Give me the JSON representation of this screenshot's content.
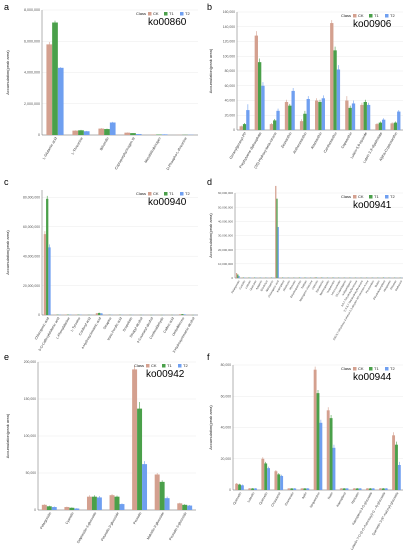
{
  "figure": {
    "legend_title": "Class",
    "groups": [
      "CK",
      "T1",
      "T2"
    ],
    "group_colors": [
      "#d4a08f",
      "#4aa04a",
      "#6f9ff0"
    ],
    "y_axis_label": "Accumulation(peak area)"
  },
  "chart_data": [
    {
      "type": "bar",
      "panel_label": "a",
      "title": "ko00860",
      "ylabel": "Accumulation(peak area)",
      "xlabel": "",
      "ylim": [
        0,
        8000000
      ],
      "yticks": [
        0,
        2000000,
        4000000,
        6000000,
        8000000
      ],
      "ytick_labels": [
        "0",
        "2,000,000",
        "4,000,000",
        "6,000,000",
        "8,000,000"
      ],
      "categories": [
        "L-Glutamic acid",
        "L-Threonine",
        "Biliverdin",
        "Coproporphyrinogen III",
        "Mesobilirubinogen",
        "D-Phospho-L-threonine"
      ],
      "series": [
        {
          "name": "CK",
          "values": [
            5800000,
            280000,
            410000,
            150000,
            20000,
            10000
          ]
        },
        {
          "name": "T1",
          "values": [
            7200000,
            300000,
            380000,
            120000,
            30000,
            12000
          ]
        },
        {
          "name": "T2",
          "values": [
            4300000,
            240000,
            800000,
            60000,
            40000,
            15000
          ]
        }
      ],
      "errors": [
        [
          150000,
          20000,
          30000,
          15000,
          5000,
          3000
        ],
        [
          120000,
          25000,
          30000,
          12000,
          5000,
          3000
        ],
        [
          40000,
          20000,
          40000,
          8000,
          5000,
          3000
        ]
      ],
      "legend_position": "top-right"
    },
    {
      "type": "bar",
      "panel_label": "b",
      "title": "ko00906",
      "ylabel": "Accumulation(peak area)",
      "xlabel": "",
      "ylim": [
        0,
        160000
      ],
      "yticks": [
        0,
        20000,
        40000,
        60000,
        80000,
        100000,
        120000,
        140000,
        160000
      ],
      "ytick_labels": [
        "0",
        "20,000",
        "40,000",
        "60,000",
        "80,000",
        "100,000",
        "120,000",
        "140,000",
        "160,000"
      ],
      "categories": [
        "Geranylgeranyl-PP",
        "Prephytoene diphosphate",
        "(3S)-Hydroxy-beta-ionone",
        "Zeaxanthin",
        "Antheraxanthin",
        "Astaxanthin",
        "Canthaxanthin",
        "Capsanthin",
        "Lutein-5,6-epoxide",
        "Lutein 3,3'-dipalmitate",
        "Alpha-Cryptoxanthin"
      ],
      "series": [
        {
          "name": "CK",
          "values": [
            5000,
            128000,
            8000,
            38000,
            12000,
            40000,
            145000,
            40000,
            34000,
            8000,
            9000
          ]
        },
        {
          "name": "T1",
          "values": [
            8000,
            92000,
            13000,
            33000,
            22000,
            38000,
            108000,
            30000,
            38000,
            10000,
            10000
          ]
        },
        {
          "name": "T2",
          "values": [
            27000,
            60000,
            26000,
            53000,
            42000,
            43000,
            82000,
            36000,
            34000,
            14000,
            25000
          ]
        }
      ],
      "errors": [
        [
          1000,
          6000,
          1500,
          3000,
          2500,
          3000,
          4000,
          6000,
          3000,
          1500,
          1500
        ],
        [
          1500,
          5000,
          2000,
          2500,
          4000,
          3000,
          5000,
          3000,
          3000,
          1500,
          1500
        ],
        [
          8000,
          5000,
          3000,
          4000,
          4000,
          4000,
          6000,
          4000,
          3000,
          2000,
          2000
        ]
      ],
      "legend_position": "top-right"
    },
    {
      "type": "bar",
      "panel_label": "c",
      "title": "ko00940",
      "ylabel": "Accumulation(peak area)",
      "xlabel": "",
      "ylim": [
        0,
        85000000
      ],
      "yticks": [
        0,
        20000000,
        40000000,
        60000000,
        80000000
      ],
      "ytick_labels": [
        "0",
        "20,000,000",
        "40,000,000",
        "60,000,000",
        "80,000,000"
      ],
      "categories": [
        "Chlorogenic acid",
        "5-O-Caffeoylshikimic acid",
        "L-Phenylalanine",
        "L-Tyrosine",
        "Coniferyl acid",
        "4-Hydroxycinnamic acid",
        "Sinapine",
        "trans-Ferulic acid",
        "Scopoletin",
        "Sinapyl alcohol",
        "4-Coumaryl alcohol",
        "Coniferaldehyde",
        "Caffeic acid",
        "Umbelliferone",
        "3-Hydroxycinnamic alcohol"
      ],
      "series": [
        {
          "name": "CK",
          "values": [
            55000000,
            200000,
            300000,
            200000,
            100000,
            1200000,
            150000,
            150000,
            100000,
            80000,
            50000,
            60000,
            80000,
            500000,
            60000
          ]
        },
        {
          "name": "T1",
          "values": [
            79000000,
            200000,
            250000,
            200000,
            100000,
            1400000,
            150000,
            150000,
            100000,
            80000,
            50000,
            60000,
            80000,
            600000,
            60000
          ]
        },
        {
          "name": "T2",
          "values": [
            46000000,
            200000,
            250000,
            200000,
            100000,
            1100000,
            150000,
            150000,
            100000,
            80000,
            50000,
            60000,
            80000,
            400000,
            60000
          ]
        }
      ],
      "errors": [
        [
          2000000,
          20000,
          20000,
          20000,
          10000,
          100000,
          10000,
          10000,
          10000,
          8000,
          5000,
          6000,
          8000,
          50000,
          6000
        ],
        [
          2000000,
          20000,
          20000,
          20000,
          10000,
          100000,
          10000,
          10000,
          10000,
          8000,
          5000,
          6000,
          8000,
          50000,
          6000
        ],
        [
          2000000,
          20000,
          20000,
          20000,
          10000,
          100000,
          10000,
          10000,
          10000,
          8000,
          5000,
          6000,
          8000,
          50000,
          6000
        ]
      ],
      "legend_position": "top-right"
    },
    {
      "type": "bar",
      "panel_label": "d",
      "title": "ko00941",
      "ylabel": "Accumulation(peak area)",
      "xlabel": "",
      "ylim": [
        0,
        60000000
      ],
      "yticks": [
        0,
        10000000,
        20000000,
        30000000,
        40000000,
        50000000,
        60000000
      ],
      "ytick_labels": [
        "0",
        "10,000,000",
        "20,000,000",
        "30,000,000",
        "40,000,000",
        "50,000,000",
        "60,000,000"
      ],
      "categories": [
        "Pelargonidin",
        "Cyanidin",
        "Luteolin",
        "Quercetin",
        "Apigenin",
        "Eriodictyol",
        "Naringenin",
        "Chlorogenic acid",
        "Kaempferol",
        "Afzelechin",
        "Myricetin",
        "Dihydroquercetin",
        "Taxifolin",
        "Naringenin chalcone",
        "Catechin",
        "Epicatechin",
        "Neohesperidin",
        "Isoquercitrin",
        "Leucocyanidin",
        "2S-Liquiritigenin",
        "Isoliquiritigenin",
        "3,5,7-Trihydroxyflavanone",
        "3',4',5,7-Tetrahydroxyflavanone",
        "(2S)-5,7-dihydroxy-2-phenyl-2,3-dihydro-4H-chromen-4-one",
        "Pinocembrin",
        "Butein",
        "Dihydrokaempferol",
        "Hesperetin",
        "Phloretin",
        "Garbanzol"
      ],
      "series": [
        {
          "name": "CK",
          "values": [
            3500000,
            400000,
            300000,
            300000,
            200000,
            200000,
            300000,
            65000000,
            300000,
            200000,
            200000,
            300000,
            300000,
            200000,
            500000,
            400000,
            200000,
            300000,
            200000,
            200000,
            200000,
            200000,
            200000,
            200000,
            200000,
            200000,
            300000,
            200000,
            200000,
            200000
          ]
        },
        {
          "name": "T1",
          "values": [
            2500000,
            300000,
            300000,
            300000,
            200000,
            200000,
            300000,
            56000000,
            300000,
            200000,
            200000,
            300000,
            300000,
            200000,
            400000,
            300000,
            200000,
            300000,
            200000,
            200000,
            200000,
            200000,
            200000,
            200000,
            200000,
            200000,
            300000,
            200000,
            200000,
            200000
          ]
        },
        {
          "name": "T2",
          "values": [
            1500000,
            300000,
            300000,
            300000,
            200000,
            200000,
            300000,
            36000000,
            300000,
            200000,
            200000,
            300000,
            300000,
            200000,
            300000,
            300000,
            200000,
            300000,
            200000,
            200000,
            200000,
            200000,
            200000,
            200000,
            200000,
            200000,
            300000,
            200000,
            200000,
            200000
          ]
        }
      ],
      "errors": null,
      "legend_position": "top-right"
    },
    {
      "type": "bar",
      "panel_label": "e",
      "title": "ko00942",
      "ylabel": "Accumulation(peak area)",
      "xlabel": "",
      "ylim": [
        0,
        200000
      ],
      "yticks": [
        0,
        50000,
        100000,
        150000,
        200000
      ],
      "ytick_labels": [
        "0",
        "50,000",
        "100,000",
        "150,000",
        "200,000"
      ],
      "categories": [
        "Pelargonidin",
        "Cyanidin",
        "Delphinidin-3-glucoside",
        "Petunidin-3-glucoside",
        "Peonidin",
        "Malvidin-3-glucoside",
        "Peonidin-3-glucoside"
      ],
      "series": [
        {
          "name": "CK",
          "values": [
            7000,
            4000,
            18000,
            20000,
            190000,
            48000,
            9000
          ]
        },
        {
          "name": "T1",
          "values": [
            5000,
            3000,
            18000,
            18000,
            137000,
            38000,
            7000
          ]
        },
        {
          "name": "T2",
          "values": [
            4000,
            2000,
            17000,
            8000,
            62000,
            16000,
            6000
          ]
        }
      ],
      "errors": [
        [
          800,
          500,
          2000,
          1500,
          5000,
          2000,
          800
        ],
        [
          800,
          500,
          2000,
          1500,
          9000,
          2000,
          800
        ],
        [
          800,
          500,
          2000,
          1000,
          4000,
          2000,
          800
        ]
      ],
      "legend_position": "top-right"
    },
    {
      "type": "bar",
      "panel_label": "f",
      "title": "ko00944",
      "ylabel": "Accumulation(peak area)",
      "xlabel": "",
      "ylim": [
        0,
        80000
      ],
      "yticks": [
        0,
        20000,
        40000,
        60000,
        80000
      ],
      "ytick_labels": [
        "0",
        "20,000",
        "40,000",
        "60,000",
        "80,000"
      ],
      "categories": [
        "Quercetin",
        "Luteolin",
        "Quercetin",
        "Chrysoeriol",
        "Cosmosiin",
        "Apiin",
        "Isoquercitrin",
        "Rutin",
        "Kaempferol",
        "Myricetin",
        "Kaempferol-3-O-glucoside",
        "Luteolin 7-O-(2-O-rhamnosyl)-(1→4)-glucoside",
        "Quercetin 3-(6''-malonyl)-glucoside"
      ],
      "series": [
        {
          "name": "CK",
          "values": [
            4000,
            1000,
            20000,
            12000,
            1000,
            1000,
            77000,
            51000,
            1000,
            1000,
            1000,
            1000,
            35000
          ]
        },
        {
          "name": "T1",
          "values": [
            3500,
            1000,
            17000,
            10000,
            1000,
            1000,
            62000,
            46000,
            1000,
            1000,
            1000,
            1000,
            29000
          ]
        },
        {
          "name": "T2",
          "values": [
            3000,
            1000,
            14000,
            9000,
            1000,
            1000,
            43000,
            27000,
            1000,
            1000,
            1000,
            1000,
            16000
          ]
        }
      ],
      "errors": [
        [
          500,
          200,
          1000,
          800,
          200,
          200,
          2000,
          2000,
          200,
          200,
          200,
          200,
          2000
        ],
        [
          500,
          200,
          1000,
          800,
          200,
          200,
          2000,
          2000,
          200,
          200,
          200,
          200,
          2000
        ],
        [
          500,
          200,
          1000,
          800,
          200,
          200,
          2000,
          2000,
          200,
          200,
          200,
          200,
          2000
        ]
      ],
      "legend_position": "top-right"
    }
  ]
}
